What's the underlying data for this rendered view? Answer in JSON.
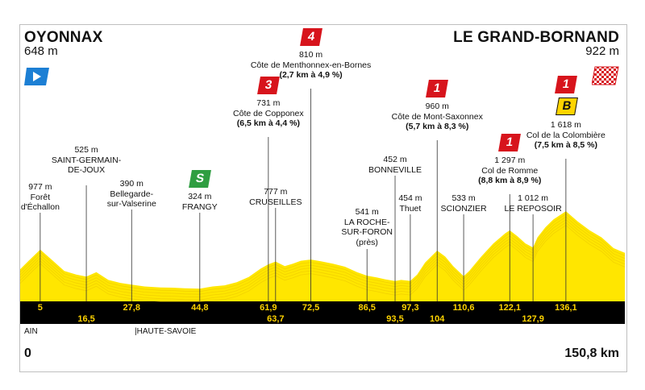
{
  "start": {
    "name": "OYONNAX",
    "altitude": "648 m"
  },
  "finish": {
    "name": "LE GRAND-BORNAND",
    "altitude": "922 m"
  },
  "distance": {
    "start": "0",
    "end": "150,8 km"
  },
  "regions": {
    "left": "AIN",
    "right": "|HAUTE-SAVOIE"
  },
  "points": [
    {
      "km": 5,
      "km_label": "5",
      "row": "top",
      "alt": "977 m",
      "name": "Forêt\nd'Échallon",
      "detail": ""
    },
    {
      "km": 16.5,
      "km_label": "16,5",
      "row": "bot",
      "alt": "525 m",
      "name": "SAINT-GERMAIN-\nDE-JOUX",
      "detail": ""
    },
    {
      "km": 27.8,
      "km_label": "27,8",
      "row": "top",
      "alt": "390 m",
      "name": "Bellegarde-\nsur-Valserine",
      "detail": ""
    },
    {
      "km": 44.8,
      "km_label": "44,8",
      "row": "top",
      "alt": "324 m",
      "name": "FRANGY",
      "detail": "",
      "badge": "S"
    },
    {
      "km": 61.9,
      "km_label": "61,9",
      "row": "top",
      "alt": "731 m",
      "name": "Côte de Copponex",
      "detail": "(6,5 km à 4,4 %)",
      "badge": "3"
    },
    {
      "km": 63.7,
      "km_label": "63,7",
      "row": "bot",
      "alt": "777 m",
      "name": "CRUSEILLES",
      "detail": ""
    },
    {
      "km": 72.5,
      "km_label": "72,5",
      "row": "top",
      "alt": "810 m",
      "name": "Côte de Menthonnex-en-Bornes",
      "detail": "(2,7 km à 4,9 %)",
      "badge": "4"
    },
    {
      "km": 86.5,
      "km_label": "86,5",
      "row": "top",
      "alt": "541 m",
      "name": "LA ROCHE-\nSUR-FORON\n(près)",
      "detail": ""
    },
    {
      "km": 93.5,
      "km_label": "93,5",
      "row": "bot",
      "alt": "452 m",
      "name": "BONNEVILLE",
      "detail": ""
    },
    {
      "km": 97.3,
      "km_label": "97,3",
      "row": "top",
      "alt": "454 m",
      "name": "Thuet",
      "detail": ""
    },
    {
      "km": 104,
      "km_label": "104",
      "row": "bot",
      "alt": "960 m",
      "name": "Côte de Mont-Saxonnex",
      "detail": "(5,7 km à 8,3 %)",
      "badge": "1"
    },
    {
      "km": 110.6,
      "km_label": "110,6",
      "row": "top",
      "alt": "533 m",
      "name": "SCIONZIER",
      "detail": ""
    },
    {
      "km": 122.1,
      "km_label": "122,1",
      "row": "top",
      "alt": "1 297 m",
      "name": "Col de Romme",
      "detail": "(8,8 km à 8,9 %)",
      "badge": "1"
    },
    {
      "km": 127.9,
      "km_label": "127,9",
      "row": "bot",
      "alt": "1 012 m",
      "name": "LE REPOSOIR",
      "detail": ""
    },
    {
      "km": 136.1,
      "km_label": "136,1",
      "row": "top",
      "alt": "1 618 m",
      "name": "Col de la Colombière",
      "detail": "(7,5 km à 8,5 %)",
      "badge": "1",
      "bonus": "B"
    }
  ],
  "profile": [
    [
      0,
      648
    ],
    [
      2,
      780
    ],
    [
      5,
      977
    ],
    [
      8,
      800
    ],
    [
      11,
      620
    ],
    [
      14,
      560
    ],
    [
      16.5,
      525
    ],
    [
      19,
      600
    ],
    [
      22,
      470
    ],
    [
      25,
      420
    ],
    [
      27.8,
      390
    ],
    [
      31,
      360
    ],
    [
      35,
      345
    ],
    [
      38,
      340
    ],
    [
      41,
      330
    ],
    [
      44.8,
      324
    ],
    [
      48,
      360
    ],
    [
      51,
      380
    ],
    [
      54,
      430
    ],
    [
      57,
      520
    ],
    [
      60,
      660
    ],
    [
      61.9,
      731
    ],
    [
      63.7,
      777
    ],
    [
      66,
      700
    ],
    [
      68,
      740
    ],
    [
      70,
      790
    ],
    [
      72.5,
      810
    ],
    [
      75,
      780
    ],
    [
      78,
      740
    ],
    [
      81,
      690
    ],
    [
      84,
      600
    ],
    [
      86.5,
      541
    ],
    [
      89,
      510
    ],
    [
      91,
      480
    ],
    [
      93.5,
      452
    ],
    [
      95,
      470
    ],
    [
      97.3,
      454
    ],
    [
      99,
      560
    ],
    [
      101,
      760
    ],
    [
      104,
      960
    ],
    [
      106,
      860
    ],
    [
      108,
      700
    ],
    [
      110.6,
      533
    ],
    [
      112,
      620
    ],
    [
      115,
      860
    ],
    [
      118,
      1080
    ],
    [
      121,
      1250
    ],
    [
      122.1,
      1297
    ],
    [
      124,
      1200
    ],
    [
      126,
      1080
    ],
    [
      127.9,
      1012
    ],
    [
      129,
      1180
    ],
    [
      131,
      1350
    ],
    [
      133,
      1480
    ],
    [
      136.1,
      1618
    ],
    [
      139,
      1450
    ],
    [
      142,
      1300
    ],
    [
      145,
      1180
    ],
    [
      148,
      1000
    ],
    [
      150.8,
      922
    ]
  ]
}
